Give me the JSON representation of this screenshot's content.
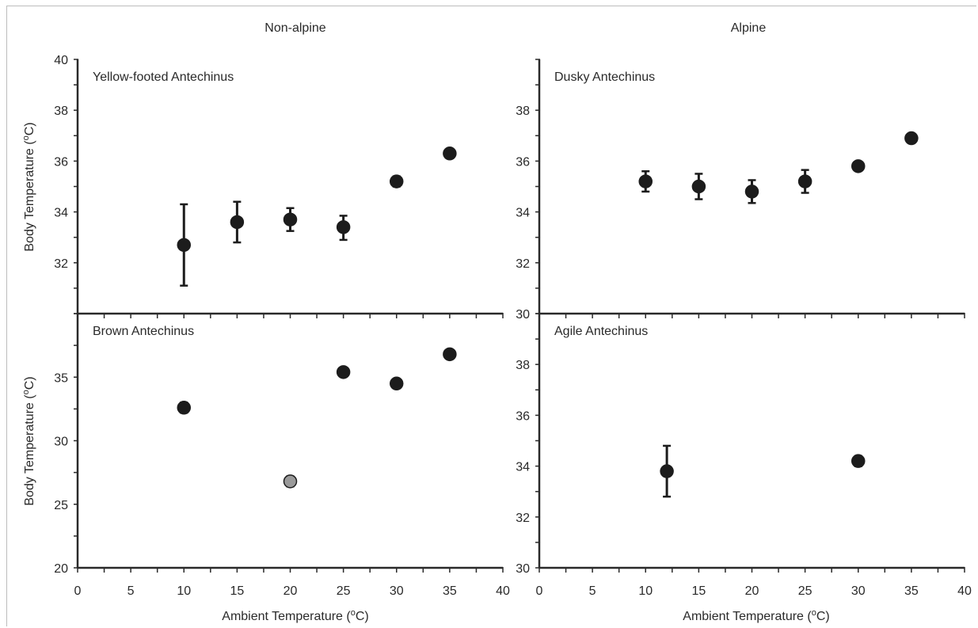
{
  "figure": {
    "column_titles": [
      "Non-alpine",
      "Alpine"
    ],
    "xlabel_prefix": "Ambient Temperature (",
    "ylabel_prefix": "Body Temperature (",
    "unit_degree": "o",
    "unit_suffix": "C)"
  },
  "chart_data": [
    {
      "type": "scatter",
      "title": "Yellow-footed Antechinus",
      "xlabel": "",
      "ylabel": "Body Temperature (°C)",
      "xlim": [
        0,
        40
      ],
      "ylim": [
        30,
        40
      ],
      "yticks": [
        32,
        34,
        36,
        38,
        40
      ],
      "error_bars": true,
      "points": [
        {
          "x": 10,
          "y": 32.7,
          "err_low": 1.6,
          "err_high": 1.6,
          "fill": "#1c1c1c"
        },
        {
          "x": 15,
          "y": 33.6,
          "err_low": 0.8,
          "err_high": 0.8,
          "fill": "#1c1c1c"
        },
        {
          "x": 20,
          "y": 33.7,
          "err_low": 0.45,
          "err_high": 0.45,
          "fill": "#1c1c1c"
        },
        {
          "x": 25,
          "y": 33.4,
          "err_low": 0.5,
          "err_high": 0.45,
          "fill": "#1c1c1c"
        },
        {
          "x": 30,
          "y": 35.2,
          "err_low": 0.2,
          "err_high": 0.2,
          "fill": "#1c1c1c"
        },
        {
          "x": 35,
          "y": 36.3,
          "err_low": 0.15,
          "err_high": 0.15,
          "fill": "#1c1c1c"
        }
      ]
    },
    {
      "type": "scatter",
      "title": "Dusky Antechinus",
      "xlabel": "",
      "ylabel": "",
      "xlim": [
        0,
        40
      ],
      "ylim": [
        30,
        40
      ],
      "yticks": [
        30,
        32,
        34,
        36,
        38
      ],
      "error_bars": true,
      "points": [
        {
          "x": 10,
          "y": 35.2,
          "err_low": 0.4,
          "err_high": 0.4,
          "fill": "#1c1c1c"
        },
        {
          "x": 15,
          "y": 35.0,
          "err_low": 0.5,
          "err_high": 0.5,
          "fill": "#1c1c1c"
        },
        {
          "x": 20,
          "y": 34.8,
          "err_low": 0.45,
          "err_high": 0.45,
          "fill": "#1c1c1c"
        },
        {
          "x": 25,
          "y": 35.2,
          "err_low": 0.45,
          "err_high": 0.45,
          "fill": "#1c1c1c"
        },
        {
          "x": 30,
          "y": 35.8,
          "err_low": 0.15,
          "err_high": 0.15,
          "fill": "#1c1c1c"
        },
        {
          "x": 35,
          "y": 36.9,
          "err_low": 0.15,
          "err_high": 0.15,
          "fill": "#1c1c1c"
        }
      ]
    },
    {
      "type": "scatter",
      "title": "Brown Antechinus",
      "xlabel": "Ambient Temperature (°C)",
      "ylabel": "Body Temperature (°C)",
      "xlim": [
        0,
        40
      ],
      "ylim": [
        20,
        40
      ],
      "yticks": [
        20,
        25,
        30,
        35
      ],
      "xticks": [
        0,
        5,
        10,
        15,
        20,
        25,
        30,
        35,
        40
      ],
      "error_bars": true,
      "points": [
        {
          "x": 10,
          "y": 32.6,
          "err_low": 0.4,
          "err_high": 0.4,
          "fill": "#1c1c1c"
        },
        {
          "x": 20,
          "y": 26.8,
          "err_low": 0.4,
          "err_high": 0.4,
          "fill": "#9a9a9a"
        },
        {
          "x": 25,
          "y": 35.4,
          "err_low": 0.3,
          "err_high": 0.3,
          "fill": "#1c1c1c"
        },
        {
          "x": 30,
          "y": 34.5,
          "err_low": 0.3,
          "err_high": 0.3,
          "fill": "#1c1c1c"
        },
        {
          "x": 35,
          "y": 36.8,
          "err_low": 0.3,
          "err_high": 0.3,
          "fill": "#1c1c1c"
        }
      ]
    },
    {
      "type": "scatter",
      "title": "Agile Antechinus",
      "xlabel": "Ambient Temperature (°C)",
      "ylabel": "",
      "xlim": [
        0,
        40
      ],
      "ylim": [
        30,
        40
      ],
      "yticks": [
        30,
        32,
        34,
        36,
        38
      ],
      "xticks": [
        0,
        5,
        10,
        15,
        20,
        25,
        30,
        35,
        40
      ],
      "error_bars": true,
      "points": [
        {
          "x": 12,
          "y": 33.8,
          "err_low": 1.0,
          "err_high": 1.0,
          "fill": "#1c1c1c"
        },
        {
          "x": 30,
          "y": 34.2,
          "err_low": 0.2,
          "err_high": 0.2,
          "fill": "#1c1c1c"
        }
      ]
    }
  ]
}
